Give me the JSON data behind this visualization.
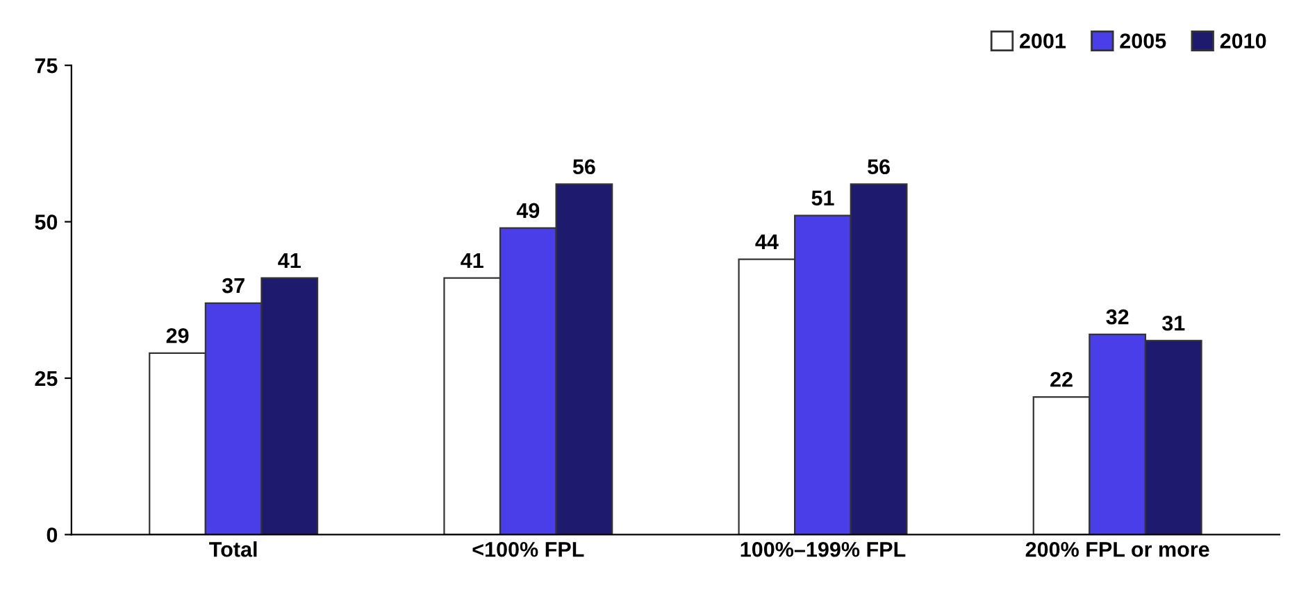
{
  "chart_data": {
    "type": "bar",
    "categories": [
      "Total",
      "<100% FPL",
      "100%–199% FPL",
      "200% FPL or more"
    ],
    "series": [
      {
        "name": "2001",
        "color": "#ffffff",
        "values": [
          29,
          41,
          44,
          22
        ]
      },
      {
        "name": "2005",
        "color": "#4a3ee8",
        "values": [
          37,
          49,
          51,
          32
        ]
      },
      {
        "name": "2010",
        "color": "#1e1a6e",
        "values": [
          41,
          56,
          56,
          31
        ]
      }
    ],
    "ylim": [
      0,
      75
    ],
    "yticks": [
      0,
      25,
      50,
      75
    ],
    "grid": false,
    "legend": "top right",
    "data_labels": true
  }
}
